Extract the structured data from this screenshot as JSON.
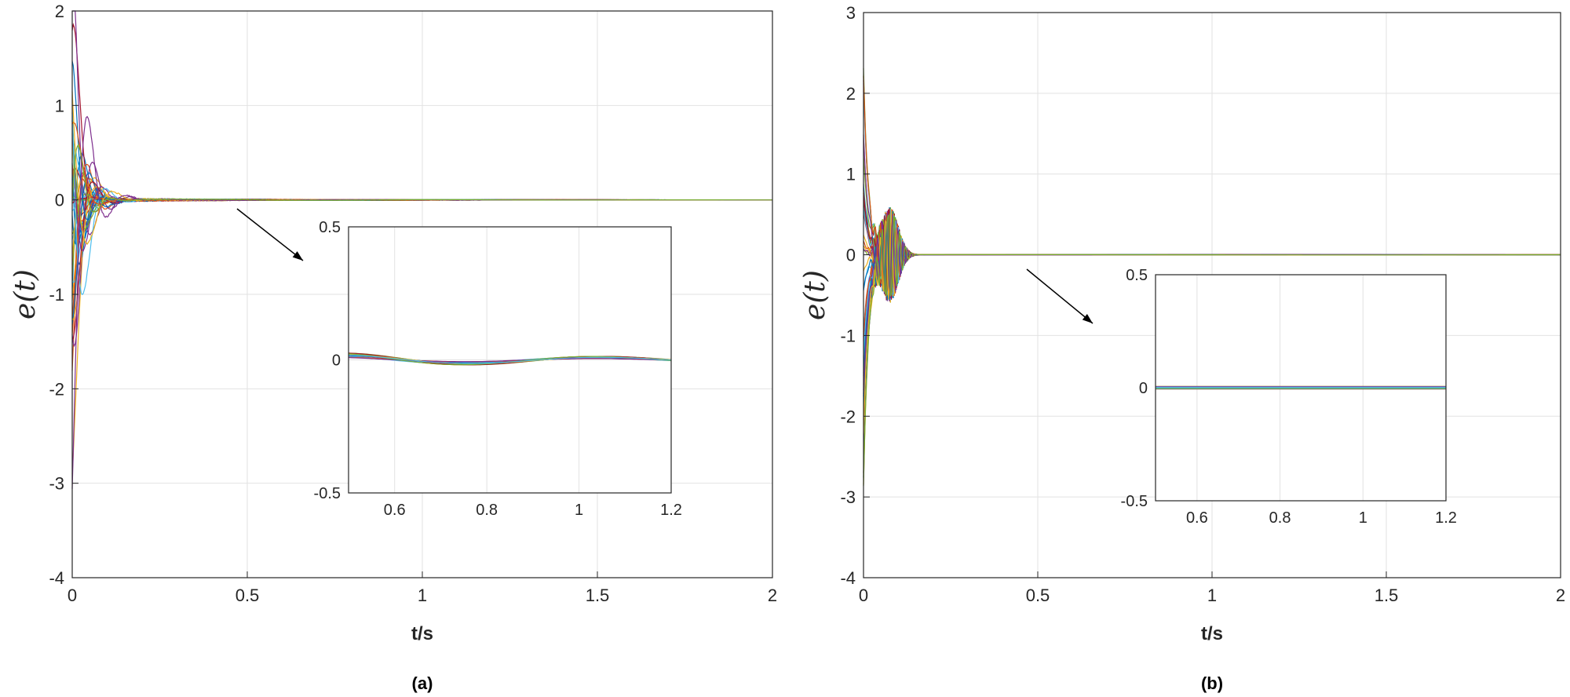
{
  "chart_data": [
    {
      "id": "a",
      "type": "line",
      "caption": "(a)",
      "xlabel": "t/s",
      "ylabel": "e(t)",
      "xlim": [
        0,
        2
      ],
      "ylim": [
        -4,
        2
      ],
      "xticks": [
        "0",
        "0.5",
        "1",
        "1.5",
        "2"
      ],
      "yticks": [
        "-4",
        "-3",
        "-2",
        "-1",
        "0",
        "1",
        "2"
      ],
      "grid": true,
      "description_of_series": "many error trajectories converging to 0",
      "peaks": {
        "max": 1.9,
        "min": -3.3,
        "settle_time": 0.2
      },
      "inset": {
        "xlim": [
          0.5,
          1.2
        ],
        "ylim": [
          -0.5,
          0.5
        ],
        "xticks": [
          "0.6",
          "0.8",
          "1",
          "1.2"
        ],
        "yticks": [
          "-0.5",
          "0",
          "0.5"
        ],
        "grid": true
      }
    },
    {
      "id": "b",
      "type": "line",
      "caption": "(b)",
      "xlabel": "t/s",
      "ylabel": "e(t)",
      "xlim": [
        0,
        2
      ],
      "ylim": [
        -4,
        3
      ],
      "xticks": [
        "0",
        "0.5",
        "1",
        "1.5",
        "2"
      ],
      "yticks": [
        "-4",
        "-3",
        "-2",
        "-1",
        "0",
        "1",
        "2",
        "3"
      ],
      "grid": true,
      "description_of_series": "many error trajectories with high-frequency oscillation converging to 0",
      "peaks": {
        "max": 2.4,
        "min": -3.3,
        "settle_time": 0.18
      },
      "inset": {
        "xlim": [
          0.5,
          1.2
        ],
        "ylim": [
          -0.5,
          0.5
        ],
        "xticks": [
          "0.6",
          "0.8",
          "1",
          "1.2"
        ],
        "yticks": [
          "-0.5",
          "0",
          "0.5"
        ],
        "grid": true
      }
    }
  ],
  "series_colors": [
    "#0072BD",
    "#D95319",
    "#EDB120",
    "#7E2F8E",
    "#77AC30",
    "#4DBEEE",
    "#A2142F"
  ]
}
